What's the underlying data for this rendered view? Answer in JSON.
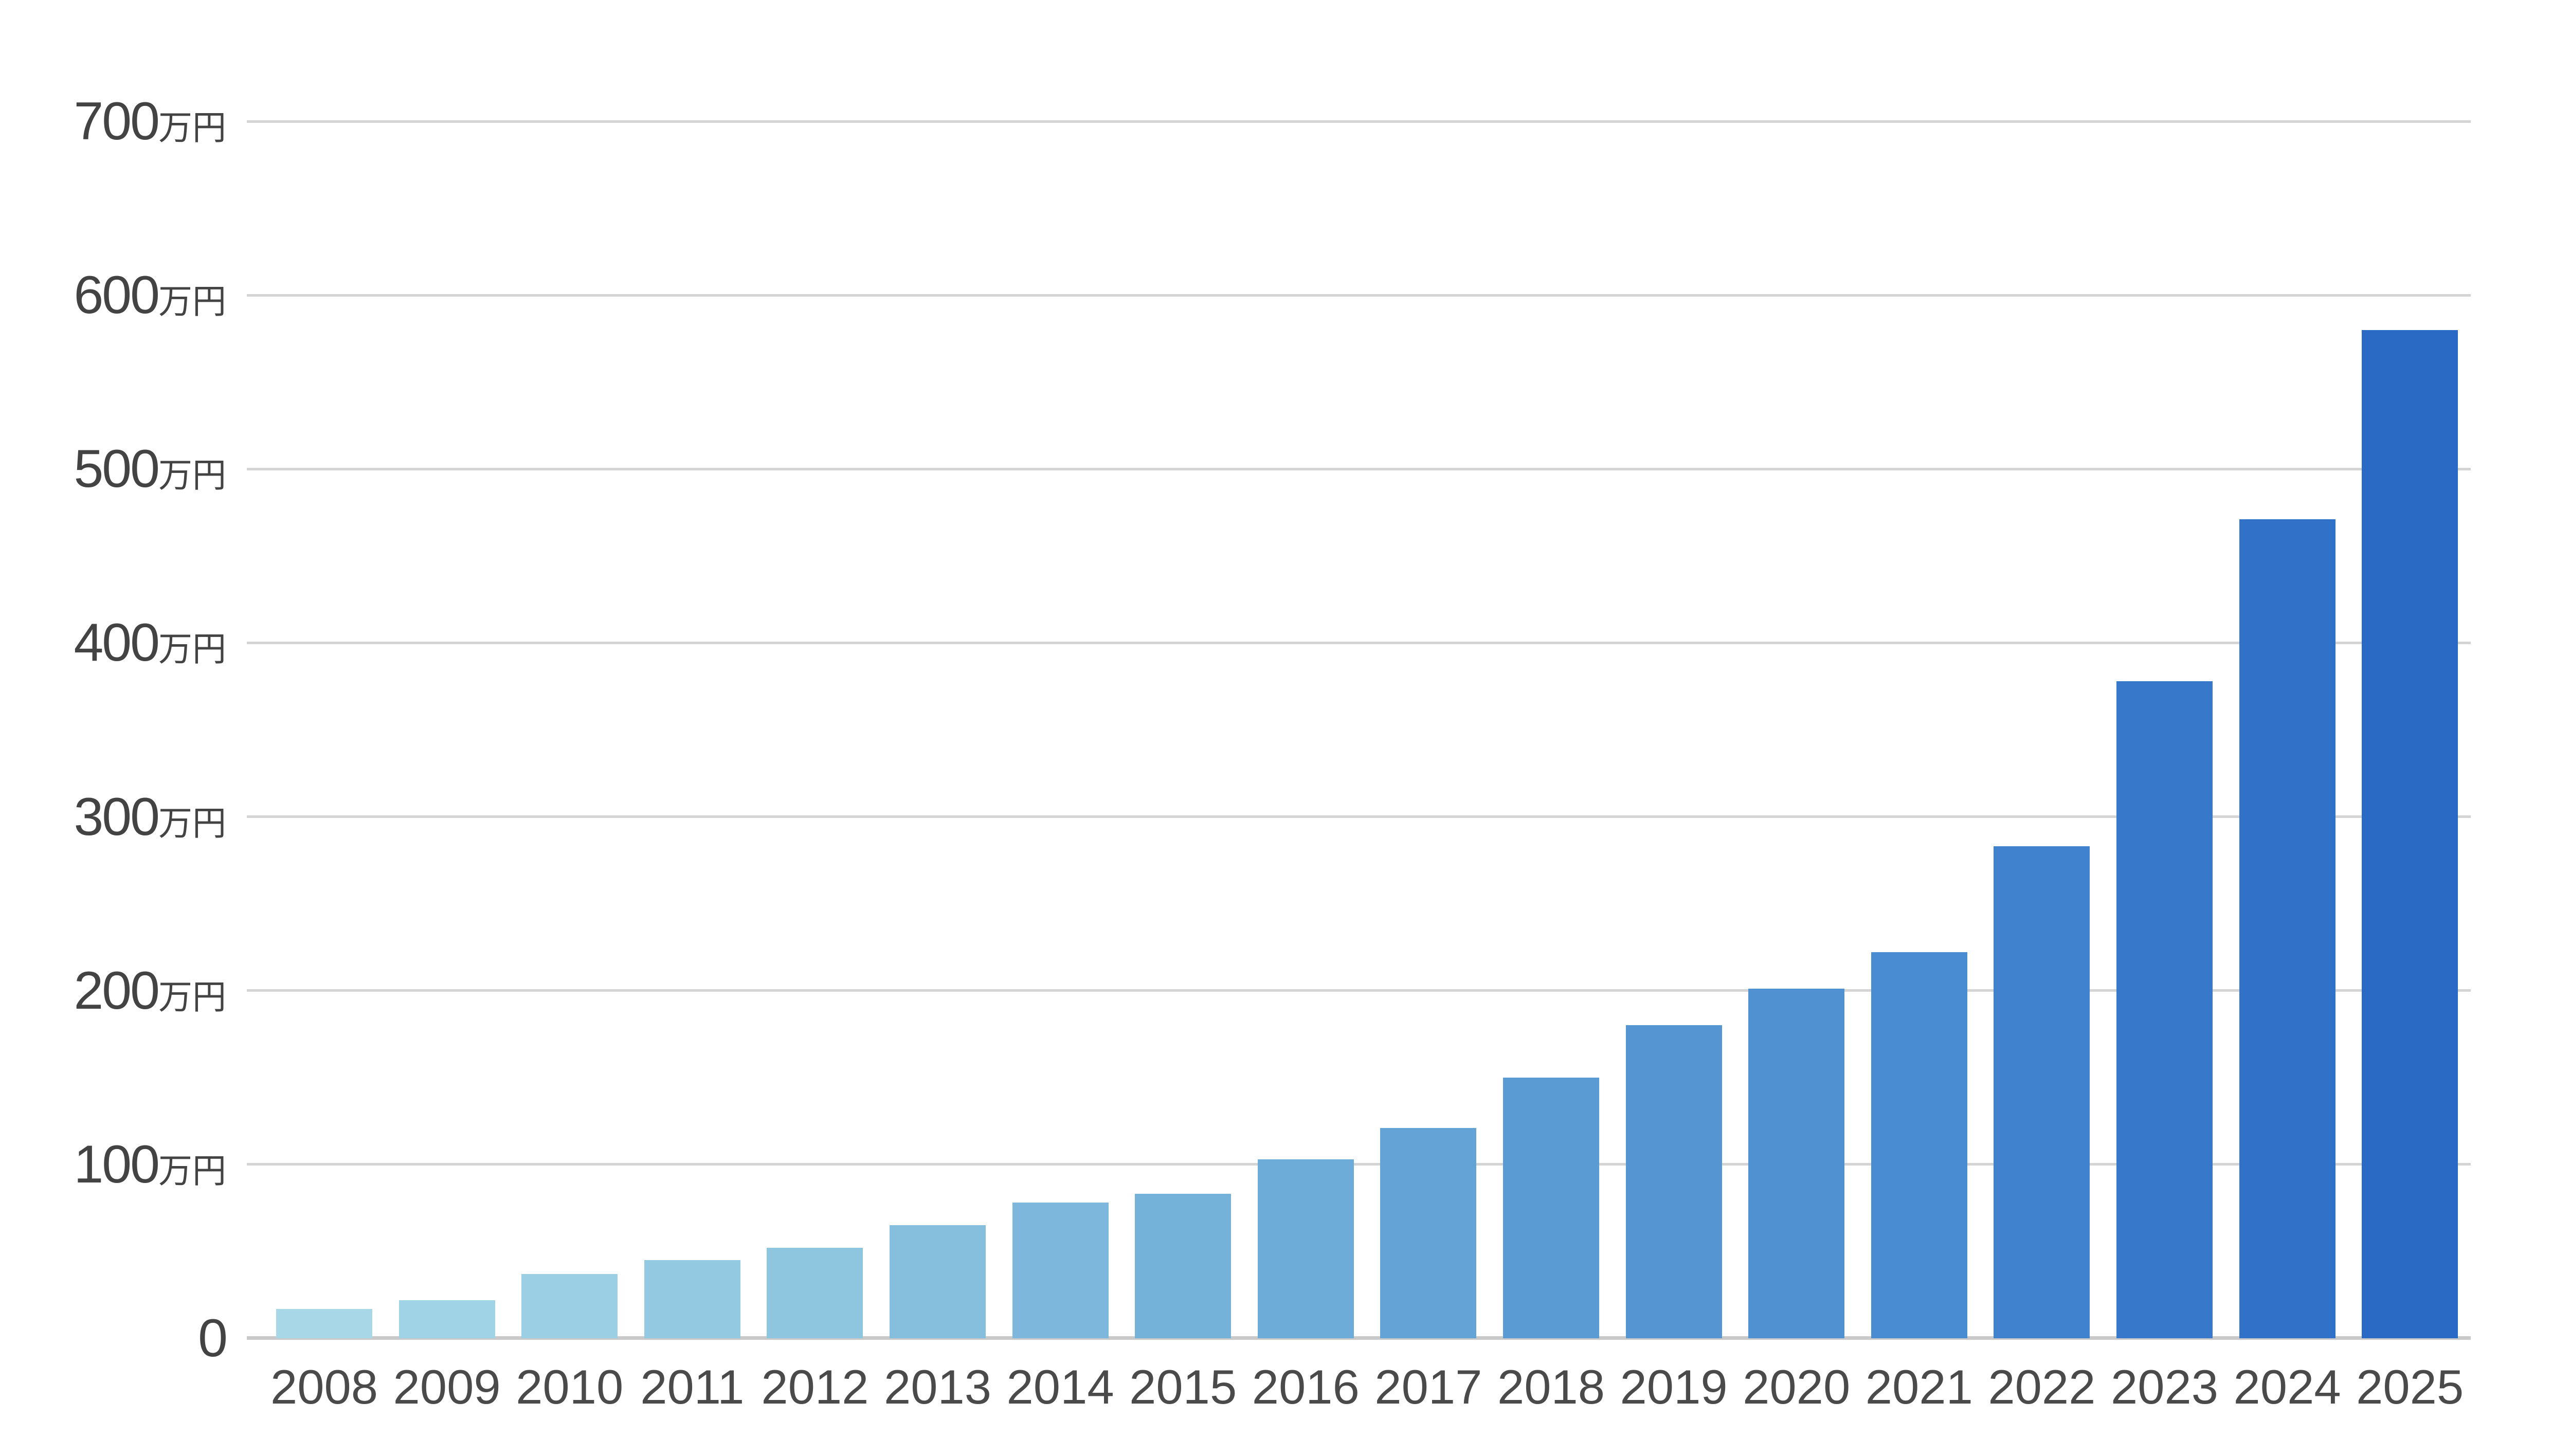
{
  "chart_data": {
    "type": "bar",
    "title": "",
    "xlabel": "",
    "ylabel": "",
    "unit_suffix": "万円",
    "categories": [
      "2008",
      "2009",
      "2010",
      "2011",
      "2012",
      "2013",
      "2014",
      "2015",
      "2016",
      "2017",
      "2018",
      "2019",
      "2020",
      "2021",
      "2022",
      "2023",
      "2024",
      "2025"
    ],
    "values": [
      17,
      22,
      37,
      45,
      52,
      65,
      78,
      83,
      103,
      121,
      150,
      180,
      201,
      222,
      283,
      378,
      471,
      580
    ],
    "bar_colors": [
      "#a8d8e8",
      "#a1d3e6",
      "#9bcfe3",
      "#94cae1",
      "#8dc6de",
      "#85bfdd",
      "#7db8dc",
      "#75b2da",
      "#6dabd8",
      "#64a3d6",
      "#5b9bd3",
      "#5596d2",
      "#5091d2",
      "#4a8cd1",
      "#4182ce",
      "#3778ca",
      "#3171c7",
      "#2a69c4"
    ],
    "ylim": [
      0,
      700
    ],
    "y_ticks": [
      {
        "value": 0,
        "label": "0",
        "suffix": ""
      },
      {
        "value": 100,
        "label": "100",
        "suffix": "万円"
      },
      {
        "value": 200,
        "label": "200",
        "suffix": "万円"
      },
      {
        "value": 300,
        "label": "300",
        "suffix": "万円"
      },
      {
        "value": 400,
        "label": "400",
        "suffix": "万円"
      },
      {
        "value": 500,
        "label": "500",
        "suffix": "万円"
      },
      {
        "value": 600,
        "label": "600",
        "suffix": "万円"
      },
      {
        "value": 700,
        "label": "700",
        "suffix": "万円"
      }
    ],
    "grid": true,
    "legend_position": "none",
    "colors": {
      "background": "#ffffff",
      "gridline": "#d4d4d4",
      "baseline": "#c9c9c9",
      "tick_text": "#434343",
      "category_text": "#4a4a4a"
    }
  }
}
